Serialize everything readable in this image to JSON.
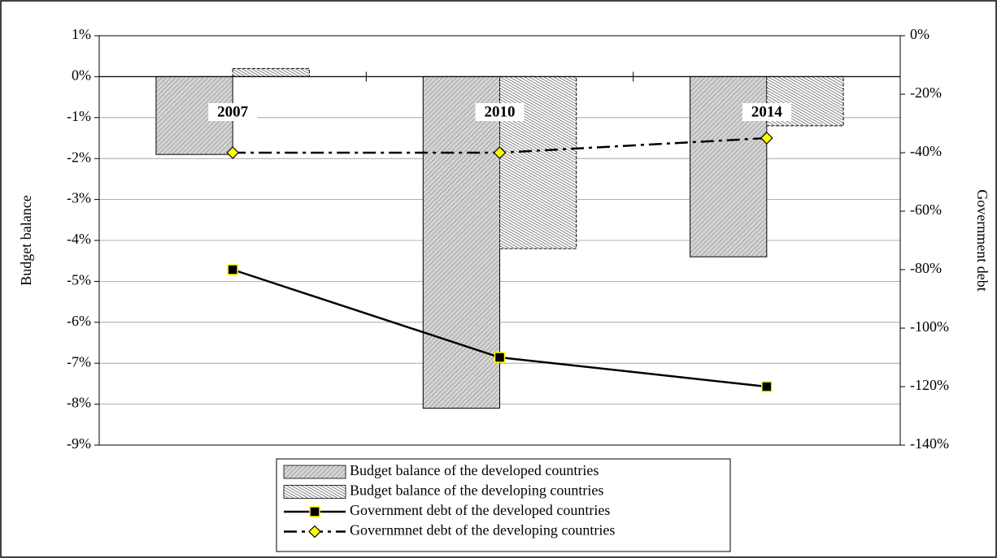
{
  "chart_data": {
    "type": "bar",
    "categories": [
      "2007",
      "2010",
      "2014"
    ],
    "series": [
      {
        "name": "Budget balance of the developed countries",
        "color": "#d4d4d4",
        "values": [
          -1.9,
          -8.1,
          -4.4
        ]
      },
      {
        "name": "Budget balance of the developing countries",
        "color": "#ffffff",
        "values": [
          0.2,
          -4.2,
          -1.2
        ]
      },
      {
        "name": "Government debt of the developed countries",
        "type": "line",
        "axis": "y2",
        "color": "#000000",
        "marker": "square",
        "marker_color": "#ffff00",
        "line_style": "solid",
        "values": [
          -80,
          -110,
          -120
        ]
      },
      {
        "name": "Governmnet debt of the developing countries",
        "type": "line",
        "axis": "y2",
        "color": "#000000",
        "marker": "diamond",
        "marker_color": "#ffff00",
        "line_style": "dashdot",
        "values": [
          -40,
          -40,
          -35
        ]
      }
    ],
    "ylabel": "Budget balance",
    "y2label": "Government debt",
    "ylim": [
      -9,
      1
    ],
    "yticks": [
      {
        "value": 1,
        "label": "1%"
      },
      {
        "value": 0,
        "label": "0%"
      },
      {
        "value": -1,
        "label": "-1%"
      },
      {
        "value": -2,
        "label": "-2%"
      },
      {
        "value": -3,
        "label": "-3%"
      },
      {
        "value": -4,
        "label": "-4%"
      },
      {
        "value": -5,
        "label": "-5%"
      },
      {
        "value": -6,
        "label": "-6%"
      },
      {
        "value": -7,
        "label": "-7%"
      },
      {
        "value": -8,
        "label": "-8%"
      },
      {
        "value": -9,
        "label": "-9%"
      }
    ],
    "y2lim": [
      -140,
      0
    ],
    "y2ticks": [
      {
        "value": 0,
        "label": "0%"
      },
      {
        "value": -20,
        "label": "-20%"
      },
      {
        "value": -40,
        "label": "-40%"
      },
      {
        "value": -60,
        "label": "-60%"
      },
      {
        "value": -80,
        "label": "-80%"
      },
      {
        "value": -100,
        "label": "-100%"
      },
      {
        "value": -120,
        "label": "-120%"
      },
      {
        "value": -140,
        "label": "-140%"
      }
    ],
    "grid": true,
    "legend": "bottom"
  }
}
